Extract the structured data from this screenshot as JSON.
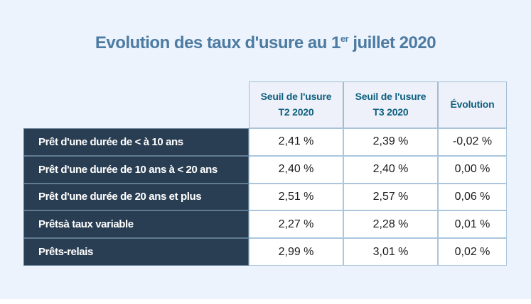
{
  "title": {
    "prefix": "Evolution des taux d'usure au 1",
    "superscript": "er",
    "suffix": " juillet 2020"
  },
  "table": {
    "columns": [
      {
        "title": "Seuil de l'usure",
        "subtitle": "T2 2020"
      },
      {
        "title": "Seuil de l'usure",
        "subtitle": "T3 2020"
      },
      {
        "title": "Évolution",
        "subtitle": ""
      }
    ],
    "rows": [
      {
        "label": "Prêt d'une durée de < à 10 ans",
        "t2": "2,41 %",
        "t3": "2,39 %",
        "evolution": "-0,02 %"
      },
      {
        "label": "Prêt d'une durée de 10 ans à < 20 ans",
        "t2": "2,40 %",
        "t3": "2,40 %",
        "evolution": "0,00 %"
      },
      {
        "label": "Prêt d'une durée de 20 ans et plus",
        "t2": "2,51 %",
        "t3": "2,57 %",
        "evolution": "0,06 %"
      },
      {
        "label": "Prêtsà taux variable",
        "t2": "2,27 %",
        "t3": "2,28 %",
        "evolution": "0,01 %"
      },
      {
        "label": "Prêts-relais",
        "t2": "2,99 %",
        "t3": "3,01 %",
        "evolution": "0,02 %"
      }
    ]
  },
  "colors": {
    "page_background": "#edf3fc",
    "title_text": "#4c7ba2",
    "header_text": "#0e607f",
    "header_background": "#eef1f9",
    "row_label_background": "#2a3e53",
    "row_label_text": "#ffffff",
    "value_cell_border": "#a9c6de",
    "bottom_strip": "#ffffff"
  },
  "chart_data": {
    "type": "table",
    "title": "Evolution des taux d'usure au 1er juillet 2020",
    "column_headers": [
      "",
      "Seuil de l'usure T2 2020",
      "Seuil de l'usure T3 2020",
      "Évolution"
    ],
    "rows": [
      [
        "Prêt d'une durée de < à 10 ans",
        "2,41 %",
        "2,39 %",
        "-0,02 %"
      ],
      [
        "Prêt d'une durée de 10 ans à < 20 ans",
        "2,40 %",
        "2,40 %",
        "0,00 %"
      ],
      [
        "Prêt d'une durée de 20 ans et plus",
        "2,51 %",
        "2,57 %",
        "0,06 %"
      ],
      [
        "Prêtsà taux variable",
        "2,27 %",
        "2,28 %",
        "0,01 %"
      ],
      [
        "Prêts-relais",
        "2,99 %",
        "3,01 %",
        "0,02 %"
      ]
    ],
    "values_numeric": {
      "t2_2020": [
        2.41,
        2.4,
        2.51,
        2.27,
        2.99
      ],
      "t3_2020": [
        2.39,
        2.4,
        2.57,
        2.28,
        3.01
      ],
      "evolution": [
        -0.02,
        0.0,
        0.06,
        0.01,
        0.02
      ]
    }
  }
}
